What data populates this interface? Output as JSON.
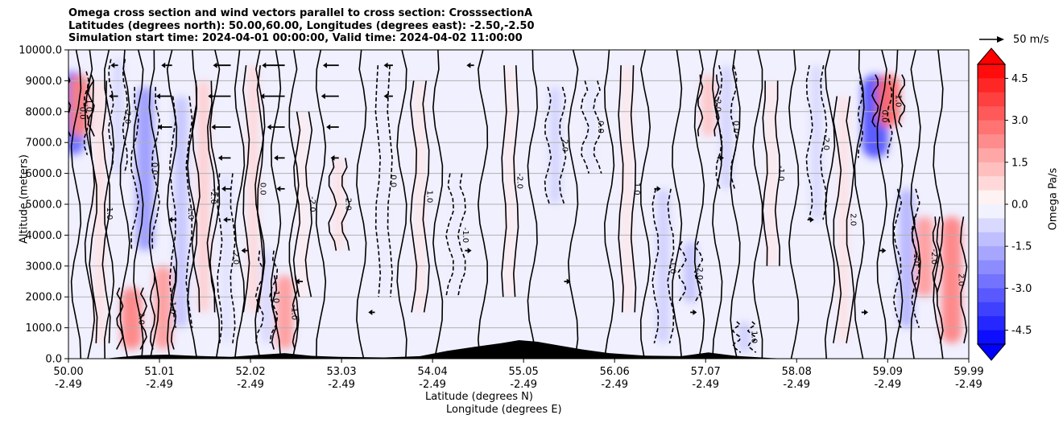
{
  "title": {
    "line1": "Omega cross section and wind vectors parallel to cross section: CrosssectionA",
    "line2": "Latitudes (degrees north): 50.00,60.00, Longitudes (degrees east): -2.50,-2.50",
    "line3": "Simulation start time: 2024-04-01 00:00:00, Valid time: 2024-04-02 11:00:00"
  },
  "axes": {
    "xlabel_lat": "Latitude (degrees N)",
    "xlabel_lon": "Longitude (degrees E)",
    "ylabel": "Altitude (meters)",
    "colorbar_label": "Omega Pa/s",
    "vector_scale_label": "50 m/s"
  },
  "chart_data": {
    "type": "heatmap",
    "x_ticks": [
      {
        "lat": "50.00",
        "lon": "-2.49"
      },
      {
        "lat": "51.01",
        "lon": "-2.49"
      },
      {
        "lat": "52.02",
        "lon": "-2.49"
      },
      {
        "lat": "53.03",
        "lon": "-2.49"
      },
      {
        "lat": "54.04",
        "lon": "-2.49"
      },
      {
        "lat": "55.05",
        "lon": "-2.49"
      },
      {
        "lat": "56.06",
        "lon": "-2.49"
      },
      {
        "lat": "57.07",
        "lon": "-2.49"
      },
      {
        "lat": "58.08",
        "lon": "-2.49"
      },
      {
        "lat": "59.09",
        "lon": "-2.49"
      },
      {
        "lat": "59.99",
        "lon": "-2.49"
      }
    ],
    "y_ticks": [
      "0.0",
      "1000.0",
      "2000.0",
      "3000.0",
      "4000.0",
      "5000.0",
      "6000.0",
      "7000.0",
      "8000.0",
      "9000.0",
      "10000.0"
    ],
    "xlim": [
      50.0,
      59.99
    ],
    "ylim": [
      0,
      10000
    ],
    "grid": "horizontal",
    "colorbar": {
      "ticks": [
        "4.5",
        "3.0",
        "1.5",
        "0.0",
        "-1.5",
        "-3.0",
        "-4.5"
      ],
      "range": [
        -5.0,
        5.0
      ],
      "colormap": "bwr",
      "extend": "both"
    },
    "contour_labels": [
      "0.0",
      "1.0",
      "-1.0",
      "-2.0",
      "2.0"
    ],
    "omega_bands": [
      {
        "lat": 50.05,
        "v": -3.0,
        "top": 9300,
        "bot": 6600
      },
      {
        "lat": 50.12,
        "v": 2.5,
        "top": 9200,
        "bot": 7200
      },
      {
        "lat": 50.35,
        "v": 0.6,
        "top": 9000,
        "bot": 500
      },
      {
        "lat": 50.55,
        "v": -0.8,
        "top": 9700,
        "bot": 6000
      },
      {
        "lat": 50.7,
        "v": 2.5,
        "top": 2300,
        "bot": 300
      },
      {
        "lat": 50.85,
        "v": -2.0,
        "top": 8800,
        "bot": 3500
      },
      {
        "lat": 51.05,
        "v": 2.0,
        "top": 3000,
        "bot": 300
      },
      {
        "lat": 51.25,
        "v": -1.2,
        "top": 8500,
        "bot": 1000
      },
      {
        "lat": 51.5,
        "v": 1.0,
        "top": 9000,
        "bot": 1500
      },
      {
        "lat": 51.75,
        "v": -0.6,
        "top": 6000,
        "bot": 500
      },
      {
        "lat": 52.05,
        "v": 0.8,
        "top": 9500,
        "bot": 1500
      },
      {
        "lat": 52.2,
        "v": -0.8,
        "top": 3500,
        "bot": 500
      },
      {
        "lat": 52.4,
        "v": 2.0,
        "top": 2700,
        "bot": 300
      },
      {
        "lat": 52.6,
        "v": 0.4,
        "top": 8000,
        "bot": 2000
      },
      {
        "lat": 53.0,
        "v": 0.6,
        "top": 6500,
        "bot": 3500
      },
      {
        "lat": 53.5,
        "v": -0.4,
        "top": 9500,
        "bot": 2000
      },
      {
        "lat": 53.9,
        "v": 0.5,
        "top": 9000,
        "bot": 1500
      },
      {
        "lat": 54.3,
        "v": -0.4,
        "top": 6000,
        "bot": 2000
      },
      {
        "lat": 54.9,
        "v": 0.4,
        "top": 9500,
        "bot": 2000
      },
      {
        "lat": 55.4,
        "v": -0.9,
        "top": 8800,
        "bot": 5000
      },
      {
        "lat": 55.8,
        "v": -0.5,
        "top": 9000,
        "bot": 6000
      },
      {
        "lat": 56.2,
        "v": 0.5,
        "top": 9500,
        "bot": 1500
      },
      {
        "lat": 56.6,
        "v": -1.0,
        "top": 5500,
        "bot": 500
      },
      {
        "lat": 56.9,
        "v": -1.2,
        "top": 3800,
        "bot": 1800
      },
      {
        "lat": 57.1,
        "v": 1.2,
        "top": 9200,
        "bot": 7200
      },
      {
        "lat": 57.3,
        "v": -0.9,
        "top": 9500,
        "bot": 5500
      },
      {
        "lat": 57.5,
        "v": -1.0,
        "top": 1200,
        "bot": 200
      },
      {
        "lat": 57.8,
        "v": 0.5,
        "top": 9000,
        "bot": 3000
      },
      {
        "lat": 58.3,
        "v": -0.8,
        "top": 9500,
        "bot": 4500
      },
      {
        "lat": 58.6,
        "v": 0.6,
        "top": 8500,
        "bot": 500
      },
      {
        "lat": 58.95,
        "v": -3.5,
        "top": 9200,
        "bot": 6500
      },
      {
        "lat": 59.1,
        "v": 3.0,
        "top": 9200,
        "bot": 7500
      },
      {
        "lat": 59.3,
        "v": -1.5,
        "top": 5500,
        "bot": 1000
      },
      {
        "lat": 59.5,
        "v": 2.0,
        "top": 4600,
        "bot": 2000
      },
      {
        "lat": 59.8,
        "v": 2.5,
        "top": 4600,
        "bot": 500
      }
    ],
    "terrain": [
      {
        "lat": 50.0,
        "h": 0
      },
      {
        "lat": 50.4,
        "h": 0
      },
      {
        "lat": 50.6,
        "h": 60
      },
      {
        "lat": 50.8,
        "h": 110
      },
      {
        "lat": 51.1,
        "h": 130
      },
      {
        "lat": 51.4,
        "h": 90
      },
      {
        "lat": 51.8,
        "h": 60
      },
      {
        "lat": 52.1,
        "h": 120
      },
      {
        "lat": 52.4,
        "h": 180
      },
      {
        "lat": 52.7,
        "h": 90
      },
      {
        "lat": 53.0,
        "h": 60
      },
      {
        "lat": 53.5,
        "h": 40
      },
      {
        "lat": 53.9,
        "h": 80
      },
      {
        "lat": 54.2,
        "h": 250
      },
      {
        "lat": 54.5,
        "h": 380
      },
      {
        "lat": 54.8,
        "h": 500
      },
      {
        "lat": 55.0,
        "h": 600
      },
      {
        "lat": 55.2,
        "h": 550
      },
      {
        "lat": 55.4,
        "h": 450
      },
      {
        "lat": 55.7,
        "h": 300
      },
      {
        "lat": 56.0,
        "h": 180
      },
      {
        "lat": 56.4,
        "h": 100
      },
      {
        "lat": 56.8,
        "h": 80
      },
      {
        "lat": 57.1,
        "h": 200
      },
      {
        "lat": 57.4,
        "h": 90
      },
      {
        "lat": 57.8,
        "h": 20
      },
      {
        "lat": 58.0,
        "h": 0
      },
      {
        "lat": 59.99,
        "h": 0
      }
    ],
    "wind_vectors": [
      {
        "lat": 50.55,
        "alt": 9500,
        "u": -4
      },
      {
        "lat": 51.15,
        "alt": 9500,
        "u": -8
      },
      {
        "lat": 51.8,
        "alt": 9500,
        "u": -16
      },
      {
        "lat": 52.4,
        "alt": 9500,
        "u": -22
      },
      {
        "lat": 53.0,
        "alt": 9500,
        "u": -14
      },
      {
        "lat": 53.6,
        "alt": 9500,
        "u": -6
      },
      {
        "lat": 54.5,
        "alt": 9500,
        "u": -4
      },
      {
        "lat": 50.55,
        "alt": 8500,
        "u": -6
      },
      {
        "lat": 51.15,
        "alt": 8500,
        "u": -14
      },
      {
        "lat": 51.8,
        "alt": 8500,
        "u": -22
      },
      {
        "lat": 52.4,
        "alt": 8500,
        "u": -24
      },
      {
        "lat": 53.0,
        "alt": 8500,
        "u": -16
      },
      {
        "lat": 53.6,
        "alt": 8500,
        "u": -6
      },
      {
        "lat": 51.15,
        "alt": 7500,
        "u": -12
      },
      {
        "lat": 51.8,
        "alt": 7500,
        "u": -18
      },
      {
        "lat": 52.4,
        "alt": 7500,
        "u": -16
      },
      {
        "lat": 53.0,
        "alt": 7500,
        "u": -10
      },
      {
        "lat": 51.8,
        "alt": 6500,
        "u": -10
      },
      {
        "lat": 52.4,
        "alt": 6500,
        "u": -8
      },
      {
        "lat": 53.0,
        "alt": 6500,
        "u": -5
      },
      {
        "lat": 51.8,
        "alt": 5500,
        "u": -6
      },
      {
        "lat": 52.4,
        "alt": 5500,
        "u": -5
      },
      {
        "lat": 51.2,
        "alt": 4500,
        "u": -5
      },
      {
        "lat": 51.8,
        "alt": 4500,
        "u": -4
      },
      {
        "lat": 56.5,
        "alt": 5500,
        "u": 3
      },
      {
        "lat": 57.2,
        "alt": 6500,
        "u": 3
      },
      {
        "lat": 58.2,
        "alt": 4500,
        "u": 3
      },
      {
        "lat": 59.0,
        "alt": 3500,
        "u": 3
      },
      {
        "lat": 55.5,
        "alt": 2500,
        "u": 3
      },
      {
        "lat": 54.4,
        "alt": 3500,
        "u": 3
      },
      {
        "lat": 56.9,
        "alt": 1500,
        "u": 3
      },
      {
        "lat": 58.8,
        "alt": 1500,
        "u": 3
      },
      {
        "lat": 53.4,
        "alt": 1500,
        "u": -3
      },
      {
        "lat": 52.6,
        "alt": 2500,
        "u": -4
      },
      {
        "lat": 52.0,
        "alt": 3500,
        "u": -4
      }
    ],
    "vector_scale_mps": 50
  }
}
